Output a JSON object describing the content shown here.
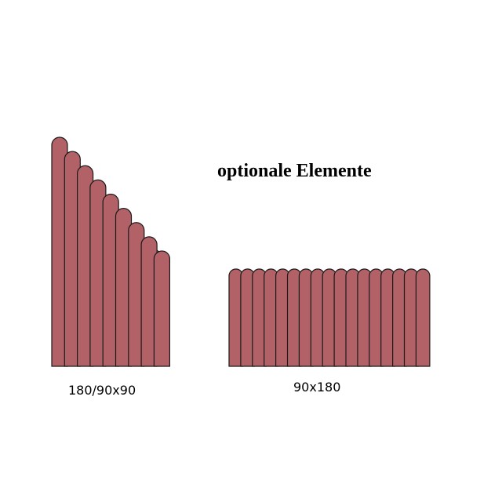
{
  "heading": "optionale Elemente",
  "elements": [
    {
      "id": "sloped",
      "caption": "180/90x90",
      "boards": 9
    },
    {
      "id": "straight",
      "caption": "90x180",
      "boards": 17
    }
  ],
  "colors": {
    "board": "#b26167",
    "outline": "#1a1a1a",
    "background": "#ffffff"
  }
}
